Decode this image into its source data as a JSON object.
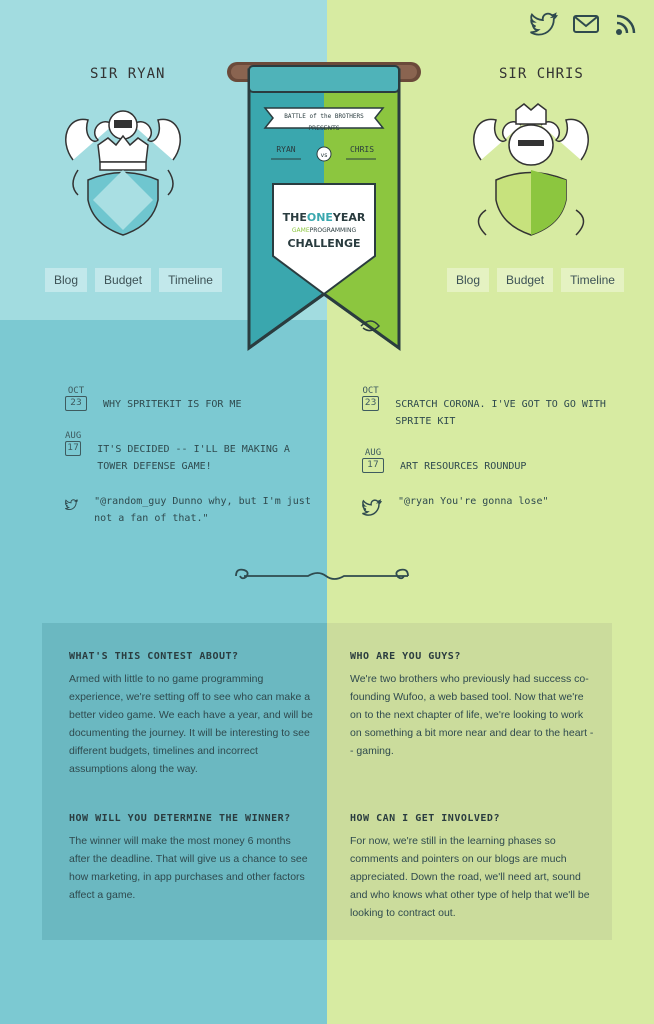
{
  "social": [
    {
      "icon": "twitter-icon"
    },
    {
      "icon": "mail-icon"
    },
    {
      "icon": "rss-icon"
    }
  ],
  "left_player": {
    "name": "SIR RYAN",
    "nav": [
      "Blog",
      "Budget",
      "Timeline"
    ],
    "posts": [
      {
        "month": "OCT",
        "day": "23",
        "title": "Why SpriteKit is for me"
      },
      {
        "month": "AUG",
        "day": "17",
        "title": "It's decided -- I'll be making a tower defense game!"
      }
    ],
    "tweet": "\"@random_guy Dunno why, but I'm just not a fan of that.\""
  },
  "right_player": {
    "name": "SIR CHRIS",
    "nav": [
      "Blog",
      "Budget",
      "Timeline"
    ],
    "posts": [
      {
        "month": "OCT",
        "day": "23",
        "title": "Scratch Corona. I've got to go with Sprite Kit"
      },
      {
        "month": "AUG",
        "day": "17",
        "title": "Art Resources Roundup"
      }
    ],
    "tweet": "\"@ryan You're gonna lose\""
  },
  "banner": {
    "top_line_1": "BATTLE",
    "top_line_2": "of the",
    "top_line_3": "BROTHERS",
    "presents": "PRESENTS",
    "left_name": "RYAN",
    "vs": "vs",
    "right_name": "CHRIS",
    "title_1a": "THE",
    "title_1b": "ONE",
    "title_1c": "YEAR",
    "title_2a": "GAME",
    "title_2b": "PROGRAMMING",
    "title_3": "CHALLENGE"
  },
  "faq": [
    {
      "q": "What's this contest about?",
      "a": "Armed with little to no game programming experience, we're setting off to see who can make a better video game. We each have a year, and will be documenting the journey. It will be interesting to see different budgets, timelines and incorrect assumptions along the way."
    },
    {
      "q": "Who are you guys?",
      "a": "We're two brothers who previously had success co-founding Wufoo, a web based tool. Now that we're on to the next chapter of life, we're looking to work on something a bit more near and dear to the heart -- gaming."
    },
    {
      "q": "How will you determine the winner?",
      "a": "The winner will make the most money 6 months after the deadline. That will give us a chance to see how marketing, in app purchases and other factors affect a game."
    },
    {
      "q": "How can I get involved?",
      "a": "For now, we're still in the learning phases so comments and pointers on our blogs are much appreciated. Down the road, we'll need art, sound and who knows what other type of help that we'll be looking to contract out."
    }
  ],
  "colors": {
    "left_top": "#a2dce0",
    "left_bottom": "#7cc9d2",
    "right": "#d7eba2",
    "banner_teal": "#3aa7ae",
    "banner_green": "#8cc63f"
  }
}
